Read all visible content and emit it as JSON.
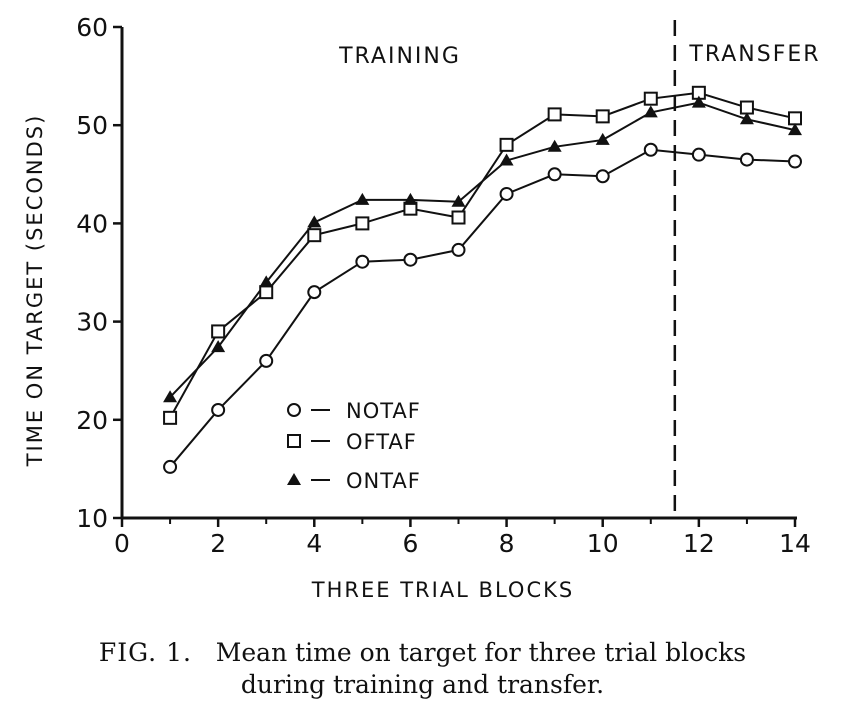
{
  "chart_data": {
    "type": "line",
    "xlabel": "THREE TRIAL BLOCKS",
    "ylabel": "TIME ON TARGET (SECONDS)",
    "xlim": [
      0,
      14
    ],
    "ylim": [
      10,
      60
    ],
    "x_ticks": [
      "0",
      "2",
      "4",
      "6",
      "8",
      "10",
      "12",
      "14"
    ],
    "y_ticks": [
      "10",
      "20",
      "30",
      "40",
      "50",
      "60"
    ],
    "x": [
      1,
      2,
      3,
      4,
      5,
      6,
      7,
      8,
      9,
      10,
      11,
      12,
      13,
      14
    ],
    "series": [
      {
        "name": "NOTAF",
        "marker": "open-circle",
        "values": [
          15.2,
          21,
          26,
          33,
          36.1,
          36.3,
          37.3,
          43,
          45,
          44.8,
          47.5,
          47,
          46.5,
          46.3
        ]
      },
      {
        "name": "OFTAF",
        "marker": "open-square",
        "values": [
          20.2,
          29,
          33,
          38.8,
          40,
          41.5,
          40.6,
          48,
          51.1,
          50.9,
          52.7,
          53.3,
          51.8,
          50.7
        ]
      },
      {
        "name": "ONTAF",
        "marker": "filled-triangle",
        "values": [
          22.3,
          27.4,
          34,
          40.1,
          42.4,
          42.4,
          42.2,
          46.4,
          47.8,
          48.5,
          51.3,
          52.3,
          50.6,
          49.5
        ]
      }
    ],
    "regions": {
      "left": "TRAINING",
      "right": "TRANSFER",
      "divider_x": 11.5
    },
    "legend_placement": "lower-middle",
    "grid": false
  },
  "caption": {
    "label": "FIG. 1.",
    "line1": "Mean time on target for three trial blocks",
    "line2": "during training and transfer."
  }
}
